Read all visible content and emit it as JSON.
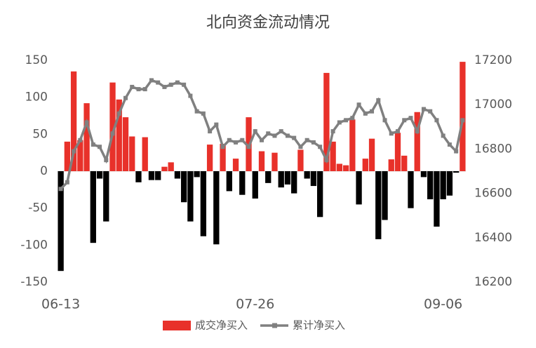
{
  "chart_data": {
    "type": "bar_line",
    "title": "北向资金流动情况",
    "categories": [
      "06-13",
      null,
      null,
      null,
      null,
      null,
      null,
      null,
      null,
      null,
      null,
      null,
      null,
      null,
      null,
      null,
      null,
      null,
      null,
      null,
      null,
      null,
      null,
      null,
      null,
      null,
      null,
      null,
      null,
      null,
      "07-26",
      null,
      null,
      null,
      null,
      null,
      null,
      null,
      null,
      null,
      null,
      null,
      null,
      null,
      null,
      null,
      null,
      null,
      null,
      null,
      null,
      null,
      null,
      null,
      null,
      null,
      null,
      null,
      null,
      "09-06",
      null,
      null,
      null
    ],
    "series": [
      {
        "name": "成交净买入",
        "color": "#e8312a",
        "negative_color": "#000000",
        "values": [
          -135,
          40,
          135,
          42,
          92,
          -97,
          -10,
          -68,
          120,
          97,
          73,
          47,
          -15,
          46,
          -12,
          -12,
          6,
          12,
          -10,
          -42,
          -68,
          -8,
          -88,
          36,
          -99,
          37,
          -27,
          17,
          -32,
          73,
          -37,
          27,
          -16,
          25,
          -22,
          -18,
          -30,
          29,
          -10,
          -20,
          -62,
          133,
          40,
          10,
          8,
          70,
          -45,
          17,
          44,
          -92,
          -66,
          16,
          52,
          21,
          -50,
          80,
          -8,
          -38,
          -75,
          -38,
          -33,
          -2,
          148
        ]
      },
      {
        "name": "累计净买入",
        "color": "#808080",
        "axis": "y2",
        "values": [
          16620,
          16650,
          16790,
          16840,
          16920,
          16820,
          16810,
          16750,
          16870,
          16960,
          17030,
          17080,
          17070,
          17070,
          17110,
          17100,
          17080,
          17090,
          17100,
          17090,
          17040,
          16970,
          16960,
          16880,
          16910,
          16810,
          16840,
          16830,
          16840,
          16810,
          16880,
          16840,
          16870,
          16860,
          16880,
          16860,
          16850,
          16810,
          16840,
          16830,
          16810,
          16750,
          16880,
          16920,
          16930,
          16940,
          17000,
          16960,
          16970,
          17020,
          16930,
          16870,
          16880,
          16930,
          16940,
          16880,
          16980,
          16970,
          16930,
          16860,
          16820,
          16790,
          16930
        ]
      }
    ],
    "ylim": [
      -150,
      150
    ],
    "yticks": [
      -150,
      -100,
      -50,
      0,
      50,
      100,
      150
    ],
    "y2lim": [
      16200,
      17200
    ],
    "y2ticks": [
      16200,
      16400,
      16600,
      16800,
      17000,
      17200
    ],
    "grid": false,
    "legend": "bottom"
  }
}
